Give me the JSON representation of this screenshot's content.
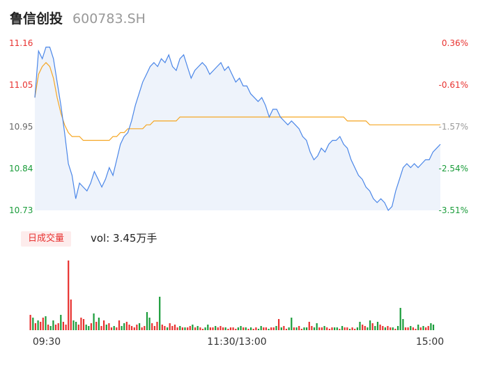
{
  "header": {
    "name": "鲁信创投",
    "code": "600783.SH"
  },
  "volume_panel": {
    "badge": "日成交量",
    "label": "vol: 3.45万手"
  },
  "colors": {
    "up": "#e8312f",
    "down": "#1a9c3a",
    "price_line": "#4a86e8",
    "avg_line": "#f5a623",
    "fill": "#eef3fb"
  },
  "chart_data": [
    {
      "type": "line",
      "title": "",
      "y_ticks_left": [
        "11.16",
        "11.05",
        "10.95",
        "10.84",
        "10.73"
      ],
      "y_ticks_right": [
        "0.36%",
        "-0.61%",
        "-1.57%",
        "-2.54%",
        "-3.51%"
      ],
      "ylim": [
        10.73,
        11.16
      ],
      "x_ticks": [
        "09:30",
        "11:30/13:00",
        "15:00"
      ],
      "series": [
        {
          "name": "",
          "values": [
            11.02,
            11.14,
            11.12,
            11.15,
            11.15,
            11.12,
            11.06,
            11.0,
            10.93,
            10.85,
            10.82,
            10.76,
            10.8,
            10.79,
            10.78,
            10.8,
            10.83,
            10.81,
            10.79,
            10.81,
            10.84,
            10.82,
            10.86,
            10.9,
            10.92,
            10.93,
            10.96,
            11.0,
            11.03,
            11.06,
            11.08,
            11.1,
            11.11,
            11.1,
            11.12,
            11.11,
            11.13,
            11.1,
            11.09,
            11.12,
            11.13,
            11.1,
            11.07,
            11.09,
            11.1,
            11.11,
            11.1,
            11.08,
            11.09,
            11.1,
            11.11,
            11.09,
            11.1,
            11.08,
            11.06,
            11.07,
            11.05,
            11.05,
            11.03,
            11.02,
            11.01,
            11.02,
            11.0,
            10.97,
            10.99,
            10.99,
            10.97,
            10.96,
            10.95,
            10.96,
            10.95,
            10.94,
            10.92,
            10.91,
            10.88,
            10.86,
            10.87,
            10.89,
            10.88,
            10.9,
            10.91,
            10.91,
            10.92,
            10.9,
            10.89,
            10.86,
            10.84,
            10.82,
            10.81,
            10.79,
            10.78,
            10.76,
            10.75,
            10.76,
            10.75,
            10.73,
            10.74,
            10.78,
            10.81,
            10.84,
            10.85,
            10.84,
            10.85,
            10.84,
            10.85,
            10.86,
            10.86,
            10.88,
            10.89,
            10.9
          ]
        },
        {
          "name": "",
          "values": [
            11.02,
            11.08,
            11.1,
            11.11,
            11.1,
            11.07,
            11.02,
            10.98,
            10.95,
            10.93,
            10.92,
            10.92,
            10.92,
            10.91,
            10.91,
            10.91,
            10.91,
            10.91,
            10.91,
            10.91,
            10.91,
            10.92,
            10.92,
            10.93,
            10.93,
            10.94,
            10.94,
            10.94,
            10.94,
            10.94,
            10.95,
            10.95,
            10.96,
            10.96,
            10.96,
            10.96,
            10.96,
            10.96,
            10.96,
            10.97,
            10.97,
            10.97,
            10.97,
            10.97,
            10.97,
            10.97,
            10.97,
            10.97,
            10.97,
            10.97,
            10.97,
            10.97,
            10.97,
            10.97,
            10.97,
            10.97,
            10.97,
            10.97,
            10.97,
            10.97,
            10.97,
            10.97,
            10.97,
            10.97,
            10.97,
            10.97,
            10.97,
            10.97,
            10.97,
            10.97,
            10.97,
            10.97,
            10.97,
            10.97,
            10.97,
            10.97,
            10.97,
            10.97,
            10.97,
            10.97,
            10.97,
            10.97,
            10.97,
            10.97,
            10.96,
            10.96,
            10.96,
            10.96,
            10.96,
            10.96,
            10.95,
            10.95,
            10.95,
            10.95,
            10.95,
            10.95,
            10.95,
            10.95,
            10.95,
            10.95,
            10.95,
            10.95,
            10.95,
            10.95,
            10.95,
            10.95,
            10.95,
            10.95,
            10.95,
            10.95
          ]
        }
      ]
    },
    {
      "type": "bar",
      "title": "",
      "x_ticks": [
        "09:30",
        "11:30/13:00",
        "15:00"
      ],
      "values": [
        22,
        18,
        10,
        14,
        12,
        18,
        20,
        8,
        6,
        14,
        8,
        10,
        22,
        12,
        8,
        100,
        44,
        14,
        12,
        8,
        18,
        16,
        8,
        6,
        10,
        24,
        12,
        18,
        6,
        14,
        8,
        10,
        4,
        6,
        4,
        14,
        6,
        10,
        12,
        8,
        6,
        4,
        8,
        10,
        4,
        6,
        26,
        18,
        10,
        6,
        12,
        48,
        8,
        6,
        4,
        10,
        6,
        8,
        4,
        6,
        4,
        4,
        4,
        6,
        8,
        4,
        6,
        4,
        2,
        4,
        8,
        4,
        4,
        6,
        4,
        6,
        4,
        4,
        2,
        4,
        4,
        2,
        4,
        6,
        4,
        4,
        2,
        4,
        2,
        4,
        2,
        6,
        4,
        4,
        2,
        4,
        4,
        6,
        16,
        4,
        6,
        2,
        4,
        18,
        4,
        4,
        6,
        2,
        4,
        4,
        12,
        6,
        4,
        10,
        4,
        4,
        6,
        4,
        2,
        4,
        4,
        4,
        2,
        6,
        4,
        4,
        2,
        4,
        2,
        4,
        12,
        8,
        6,
        4,
        14,
        10,
        6,
        12,
        8,
        6,
        4,
        6,
        4,
        4,
        2,
        6,
        32,
        16,
        4,
        4,
        6,
        4,
        2,
        8,
        4,
        6,
        4,
        6,
        10,
        8
      ],
      "up": [
        1,
        0,
        1,
        0,
        1,
        1,
        0,
        1,
        0,
        0,
        1,
        1,
        0,
        1,
        1,
        1,
        1,
        0,
        0,
        1,
        1,
        1,
        0,
        0,
        1,
        0,
        1,
        0,
        1,
        1,
        0,
        1,
        1,
        0,
        1,
        1,
        0,
        0,
        1,
        1,
        1,
        1,
        1,
        0,
        1,
        1,
        0,
        0,
        1,
        1,
        1,
        0,
        1,
        1,
        0,
        1,
        1,
        1,
        1,
        0,
        1,
        0,
        1,
        1,
        0,
        1,
        0,
        1,
        1,
        0,
        0,
        1,
        1,
        0,
        1,
        1,
        1,
        0,
        1,
        1,
        1,
        1,
        0,
        0,
        1,
        0,
        1,
        0,
        1,
        1,
        0,
        0,
        1,
        1,
        0,
        1,
        1,
        0,
        1,
        0,
        1,
        1,
        0,
        0,
        1,
        0,
        1,
        1,
        0,
        0,
        1,
        1,
        0,
        0,
        1,
        1,
        0,
        1,
        1,
        1,
        0,
        0,
        1,
        0,
        1,
        1,
        0,
        1,
        1,
        0,
        0,
        1,
        1,
        0,
        0,
        1,
        0,
        0,
        1,
        1,
        0,
        1,
        1,
        0,
        1,
        0,
        0,
        0,
        1,
        1,
        0,
        1,
        1,
        0,
        1,
        0,
        1,
        1,
        0,
        0
      ]
    }
  ]
}
